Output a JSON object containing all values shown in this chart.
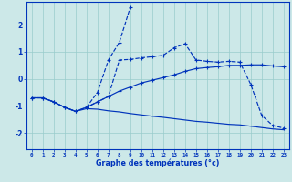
{
  "xlabel": "Graphe des températures (°c)",
  "bg_color": "#cce8e8",
  "grid_color": "#99cccc",
  "line_color": "#0033bb",
  "xlim_min": -0.5,
  "xlim_max": 23.5,
  "ylim_min": -2.6,
  "ylim_max": 2.85,
  "yticks": [
    -2,
    -1,
    0,
    1,
    2
  ],
  "xticks": [
    0,
    1,
    2,
    3,
    4,
    5,
    6,
    7,
    8,
    9,
    10,
    11,
    12,
    13,
    14,
    15,
    16,
    17,
    18,
    19,
    20,
    21,
    22,
    23
  ],
  "line1_x": [
    0,
    1,
    2,
    3,
    4,
    5,
    6,
    7,
    8,
    9,
    10,
    11,
    12,
    13,
    14,
    15,
    16,
    17,
    18,
    19,
    20,
    21,
    22,
    23
  ],
  "line1_y": [
    -0.7,
    -0.7,
    -0.85,
    -1.05,
    -1.2,
    -1.05,
    -0.85,
    -0.65,
    -0.45,
    -0.3,
    -0.15,
    -0.05,
    0.05,
    0.15,
    0.28,
    0.38,
    0.42,
    0.45,
    0.5,
    0.5,
    0.52,
    0.52,
    0.48,
    0.45
  ],
  "line2_x": [
    0,
    1,
    2,
    3,
    4,
    5,
    6,
    7,
    8,
    9,
    10,
    11,
    12,
    13,
    14,
    15,
    16,
    17,
    18,
    19,
    20,
    21,
    22,
    23
  ],
  "line2_y": [
    -0.7,
    -0.7,
    -0.85,
    -1.05,
    -1.2,
    -1.05,
    -0.85,
    -0.65,
    0.7,
    0.72,
    0.78,
    0.82,
    0.87,
    1.15,
    1.3,
    0.7,
    0.65,
    0.62,
    0.65,
    0.62,
    -0.2,
    -1.35,
    -1.72,
    -1.82
  ],
  "line3_x": [
    5,
    6,
    7,
    8,
    9
  ],
  "line3_y": [
    -1.05,
    -0.5,
    0.7,
    1.35,
    2.65
  ],
  "line4_x": [
    0,
    1,
    2,
    3,
    4,
    5,
    6,
    7,
    8,
    9,
    10,
    11,
    12,
    13,
    14,
    15,
    16,
    17,
    18,
    19,
    20,
    21,
    22,
    23
  ],
  "line4_y": [
    -0.7,
    -0.7,
    -0.85,
    -1.05,
    -1.2,
    -1.1,
    -1.12,
    -1.18,
    -1.22,
    -1.28,
    -1.33,
    -1.38,
    -1.42,
    -1.47,
    -1.52,
    -1.57,
    -1.6,
    -1.64,
    -1.68,
    -1.7,
    -1.75,
    -1.8,
    -1.85,
    -1.88
  ]
}
